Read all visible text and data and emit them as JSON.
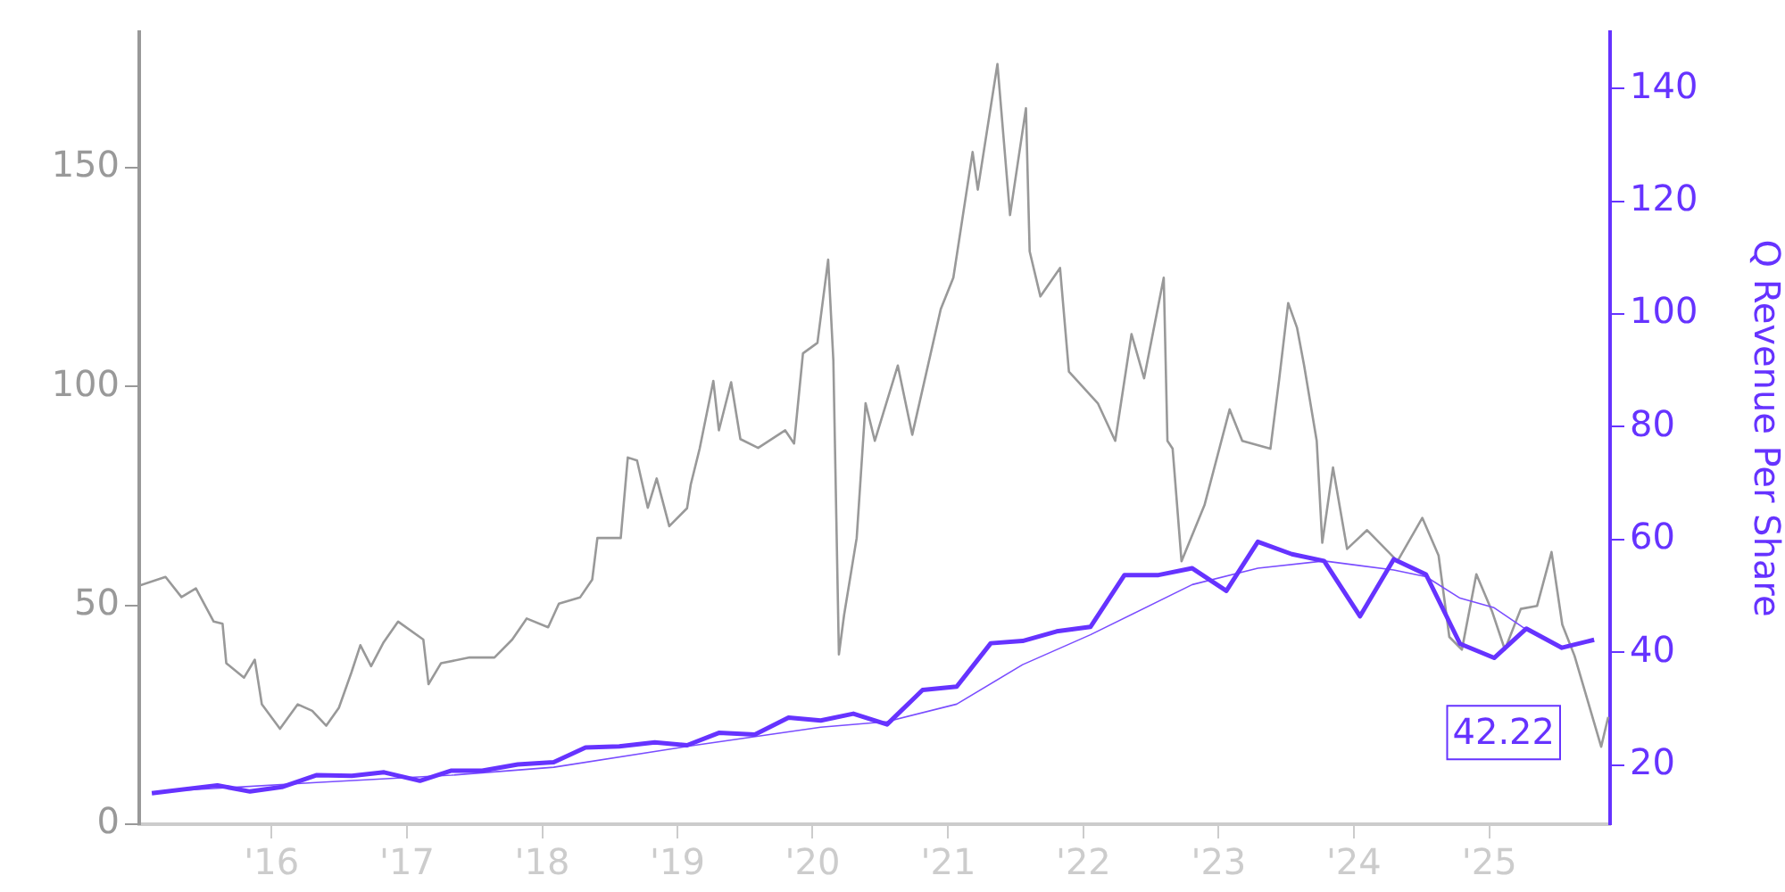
{
  "chart_data": {
    "type": "line",
    "y2label": "Q Revenue Per Share",
    "xlim": [
      "2015-01-09",
      "2025-11-23"
    ],
    "xticks": [
      {
        "value": "2016-01-01",
        "label": "'16"
      },
      {
        "value": "2017-01-01",
        "label": "'17"
      },
      {
        "value": "2018-01-01",
        "label": "'18"
      },
      {
        "value": "2019-01-01",
        "label": "'19"
      },
      {
        "value": "2020-01-01",
        "label": "'20"
      },
      {
        "value": "2021-01-01",
        "label": "'21"
      },
      {
        "value": "2022-01-01",
        "label": "'22"
      },
      {
        "value": "2023-01-01",
        "label": "'23"
      },
      {
        "value": "2024-01-01",
        "label": "'24"
      },
      {
        "value": "2025-01-01",
        "label": "'25"
      }
    ],
    "ylim": [
      0,
      181
    ],
    "yticks": [
      0,
      50,
      100,
      150
    ],
    "y2lim": [
      9.5,
      150
    ],
    "y2ticks": [
      20,
      40,
      60,
      80,
      100,
      120,
      140
    ],
    "grid": false,
    "legend": false,
    "marker": "none",
    "line_style": "solid",
    "series": [
      {
        "type": "line",
        "color": "#999999",
        "x": [
          "2015-01-09",
          "2015-03-21",
          "2015-05-03",
          "2015-06-11",
          "2015-07-29",
          "2015-08-22",
          "2015-09-01",
          "2015-10-19",
          "2015-11-17",
          "2015-12-06",
          "2016-01-24",
          "2016-03-12",
          "2016-04-20",
          "2016-05-28",
          "2016-07-01",
          "2016-08-04",
          "2016-08-28",
          "2016-09-26",
          "2016-10-30",
          "2016-12-08",
          "2017-02-14",
          "2017-02-28",
          "2017-04-03",
          "2017-06-19",
          "2017-08-25",
          "2017-10-12",
          "2017-11-20",
          "2018-01-17",
          "2018-02-15",
          "2018-04-13",
          "2018-05-16",
          "2018-05-30",
          "2018-08-01",
          "2018-08-20",
          "2018-09-14",
          "2018-10-13",
          "2018-11-06",
          "2018-12-10",
          "2019-01-27",
          "2019-02-06",
          "2019-03-02",
          "2019-04-08",
          "2019-04-23",
          "2019-05-26",
          "2019-06-20",
          "2019-08-07",
          "2019-10-19",
          "2019-11-12",
          "2019-12-06",
          "2020-01-14",
          "2020-02-12",
          "2020-02-26",
          "2020-03-12",
          "2020-03-26",
          "2020-04-29",
          "2020-05-23",
          "2020-06-17",
          "2020-08-18",
          "2020-09-26",
          "2020-12-12",
          "2021-01-15",
          "2021-03-08",
          "2021-03-22",
          "2021-05-14",
          "2021-06-17",
          "2021-07-30",
          "2021-08-09",
          "2021-09-07",
          "2021-10-30",
          "2021-11-23",
          "2022-02-09",
          "2022-03-28",
          "2022-05-11",
          "2022-06-14",
          "2022-08-06",
          "2022-08-16",
          "2022-08-30",
          "2022-09-23",
          "2022-11-24",
          "2023-01-31",
          "2023-03-06",
          "2023-05-21",
          "2023-06-14",
          "2023-07-08",
          "2023-08-01",
          "2023-08-20",
          "2023-09-23",
          "2023-10-08",
          "2023-11-06",
          "2023-12-14",
          "2024-02-06",
          "2024-04-28",
          "2024-07-04",
          "2024-08-17",
          "2024-09-15",
          "2024-10-19",
          "2024-11-27",
          "2025-01-09",
          "2025-02-12",
          "2025-03-27",
          "2025-05-10",
          "2025-06-18",
          "2025-07-17",
          "2025-08-19",
          "2025-10-30",
          "2025-11-18"
        ],
        "values": [
          54.5,
          56.5,
          51.9,
          53.9,
          46.3,
          45.8,
          36.8,
          33.5,
          37.6,
          27.4,
          21.8,
          27.4,
          25.9,
          22.5,
          26.6,
          34.7,
          40.9,
          36.1,
          41.6,
          46.3,
          42.2,
          32.0,
          36.8,
          38.1,
          38.1,
          42.2,
          47.0,
          45.0,
          50.4,
          51.8,
          55.9,
          65.4,
          65.4,
          83.8,
          83.1,
          72.3,
          79.0,
          68.1,
          72.2,
          77.6,
          85.8,
          101.3,
          90,
          101,
          88,
          86,
          90,
          87,
          107.6,
          110,
          129,
          106,
          38.8,
          47.8,
          65.4,
          96.2,
          87.6,
          104.8,
          89,
          117.7,
          124.9,
          153.6,
          145,
          173.7,
          139.2,
          163.6,
          130.9,
          120.6,
          127.1,
          103.4,
          96.2,
          87.6,
          112,
          101.9,
          124.9,
          87.6,
          85.8,
          60.1,
          72.9,
          94.8,
          87.6,
          85.8,
          101.9,
          119.1,
          113.4,
          104.8,
          87.6,
          64.3,
          81.5,
          62.9,
          67.2,
          60.1,
          70.0,
          61.4,
          42.8,
          39.9,
          57.1,
          48.5,
          39.9,
          49.2,
          49.9,
          62.2,
          45.6,
          38.5,
          17.7,
          24.5
        ]
      },
      {
        "type": "line",
        "axis": "y2",
        "color": "#6633ff",
        "x": [
          "2015-02-12",
          "2015-08-08",
          "2015-11-04",
          "2016-01-29",
          "2016-05-01",
          "2016-08-05",
          "2016-10-31",
          "2017-02-05",
          "2017-05-01",
          "2017-07-23",
          "2017-10-27",
          "2018-02-01",
          "2018-04-28",
          "2018-07-28",
          "2018-11-01",
          "2019-01-27",
          "2019-04-23",
          "2019-07-29",
          "2019-10-28",
          "2020-01-23",
          "2020-04-20",
          "2020-07-20",
          "2020-10-24",
          "2021-01-24",
          "2021-04-26",
          "2021-07-21",
          "2021-10-21",
          "2022-01-20",
          "2022-04-22",
          "2022-07-23",
          "2022-10-22",
          "2023-01-22",
          "2023-04-17",
          "2023-07-18",
          "2023-10-13",
          "2024-01-18",
          "2024-04-18",
          "2024-07-14",
          "2024-10-14",
          "2025-01-14",
          "2025-04-11",
          "2025-07-16",
          "2025-10-11"
        ],
        "values": [
          15.0,
          16.4,
          15.3,
          16.1,
          18.2,
          18.1,
          18.7,
          17.2,
          19.0,
          19.0,
          20.1,
          20.5,
          23.1,
          23.3,
          24.0,
          23.5,
          25.7,
          25.4,
          28.4,
          27.9,
          29.1,
          27.2,
          33.3,
          33.9,
          41.6,
          42.0,
          43.7,
          44.5,
          53.7,
          53.7,
          54.9,
          50.9,
          59.6,
          57.4,
          56.2,
          46.4,
          56.5,
          53.8,
          41.5,
          39.0,
          44.2,
          40.8,
          42.22
        ],
        "value_labels": [
          null,
          null,
          null,
          null,
          null,
          null,
          null,
          null,
          null,
          null,
          null,
          null,
          null,
          null,
          null,
          null,
          null,
          null,
          null,
          null,
          null,
          null,
          null,
          null,
          null,
          null,
          null,
          null,
          null,
          null,
          null,
          null,
          null,
          null,
          null,
          null,
          null,
          null,
          null,
          null,
          null,
          null,
          "42.22"
        ]
      },
      {
        "type": "line",
        "axis": "y2",
        "color": "#7a4dff",
        "x": [
          "2015-02-12",
          "2016-05-01",
          "2017-05-01",
          "2018-02-01",
          "2019-01-27",
          "2020-01-23",
          "2020-07-20",
          "2021-01-24",
          "2021-07-21",
          "2022-01-20",
          "2022-10-22",
          "2023-04-17",
          "2023-10-13",
          "2024-04-18",
          "2024-07-14",
          "2024-10-14",
          "2025-01-14",
          "2025-04-11",
          "2025-07-16"
        ],
        "values": [
          15.2,
          16.9,
          18.2,
          19.6,
          23.3,
          26.7,
          27.7,
          30.8,
          37.8,
          43.1,
          52.0,
          54.9,
          56.2,
          54.6,
          53.4,
          49.6,
          47.9,
          44.0,
          40.8
        ]
      }
    ]
  }
}
